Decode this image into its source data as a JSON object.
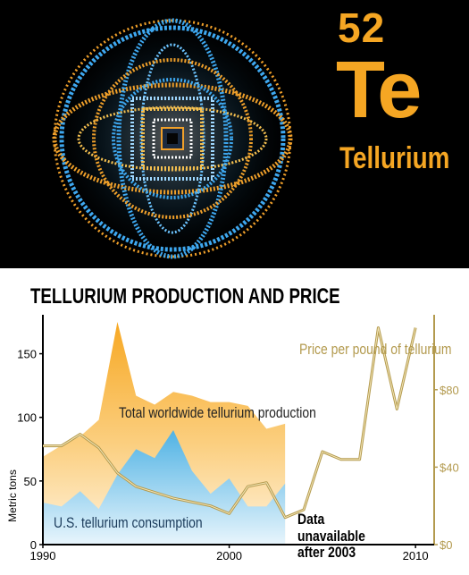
{
  "element": {
    "number": "52",
    "symbol": "Te",
    "name": "Tellurium"
  },
  "chart_data": {
    "type": "area",
    "title": "TELLURIUM PRODUCTION AND PRICE",
    "x_ticks": [
      "1990",
      "2000",
      "2010"
    ],
    "xlim": [
      1990,
      2011
    ],
    "left_axis": {
      "label": "Metric tons",
      "ticks": [
        "0",
        "50",
        "100",
        "150"
      ],
      "ylim": [
        0,
        175
      ]
    },
    "right_axis": {
      "label": "",
      "ticks": [
        "$0",
        "$40",
        "$80"
      ],
      "ylim": [
        0,
        115
      ]
    },
    "series": [
      {
        "name": "Total worldwide tellurium production",
        "axis": "left",
        "type": "area",
        "color": "#f7a823",
        "x": [
          1990,
          1991,
          1992,
          1993,
          1994,
          1995,
          1996,
          1997,
          1998,
          1999,
          2000,
          2001,
          2002,
          2003
        ],
        "values": [
          69,
          78,
          85,
          98,
          175,
          117,
          110,
          120,
          117,
          112,
          112,
          109,
          91,
          95
        ]
      },
      {
        "name": "U.S. tellurium consumption",
        "axis": "left",
        "type": "area",
        "color": "#52b6e6",
        "x": [
          1990,
          1991,
          1992,
          1993,
          1994,
          1995,
          1996,
          1997,
          1998,
          1999,
          2000,
          2001,
          2002,
          2003
        ],
        "values": [
          33,
          30,
          42,
          28,
          55,
          75,
          68,
          90,
          58,
          40,
          52,
          30,
          30,
          48
        ]
      },
      {
        "name": "Price per pound of tellurium",
        "axis": "right",
        "type": "line",
        "color": "#b39a4e",
        "x": [
          1990,
          1991,
          1992,
          1993,
          1994,
          1995,
          1996,
          1997,
          1998,
          1999,
          2000,
          2001,
          2002,
          2003,
          2004,
          2005,
          2006,
          2007,
          2008,
          2009,
          2010
        ],
        "values": [
          51,
          51,
          57,
          50,
          37,
          30,
          27,
          24,
          22,
          20,
          16,
          30,
          32,
          14,
          18,
          48,
          44,
          44,
          112,
          70,
          112
        ]
      }
    ],
    "annotations": [
      "Data unavailable after 2003"
    ]
  }
}
